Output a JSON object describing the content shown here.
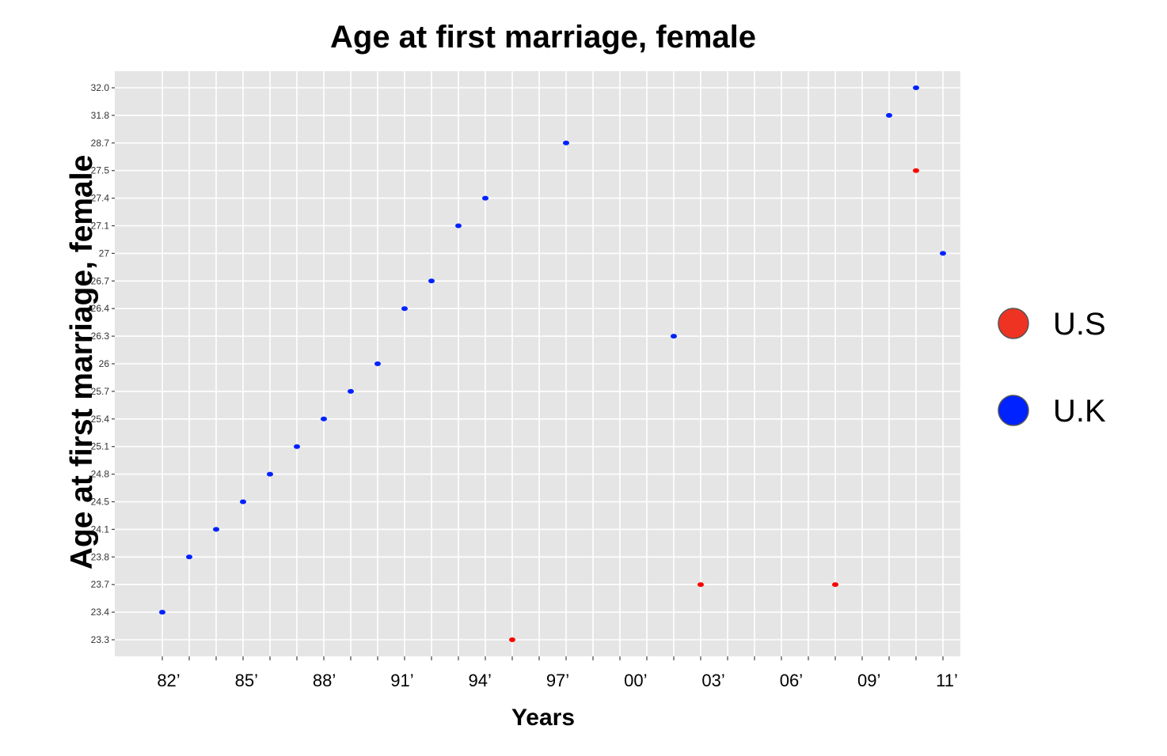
{
  "chart_data": {
    "type": "scatter",
    "title": "Age at first marriage, female",
    "xlabel": "Years",
    "ylabel": "Age at first marriage, female",
    "x_ticks": [
      "82’",
      "85’",
      "88’",
      "91’",
      "94’",
      "97’",
      "00’",
      "03’",
      "06’",
      "09’",
      "11’"
    ],
    "y_ticks": [
      "23.3",
      "23.4",
      "23.7",
      "23.8",
      "24.1",
      "24.5",
      "24.8",
      "25.1",
      "25.4",
      "25.7",
      "26",
      "26.3",
      "26.4",
      "26.7",
      "27",
      "27.1",
      "27.4",
      "27.5",
      "28.7",
      "31.8",
      "32.0"
    ],
    "y_scale": "categorical",
    "grid": true,
    "legend_position": "right",
    "series": [
      {
        "name": "U.S",
        "color": "#ff0000",
        "points": [
          {
            "x": 1995,
            "y": "23.3"
          },
          {
            "x": 2002,
            "y": "23.7"
          },
          {
            "x": 2007,
            "y": "23.7"
          },
          {
            "x": 2010,
            "y": "27.5"
          }
        ]
      },
      {
        "name": "U.K",
        "color": "#0022ff",
        "points": [
          {
            "x": 1982,
            "y": "23.4"
          },
          {
            "x": 1983,
            "y": "23.8"
          },
          {
            "x": 1984,
            "y": "24.1"
          },
          {
            "x": 1985,
            "y": "24.5"
          },
          {
            "x": 1986,
            "y": "24.8"
          },
          {
            "x": 1987,
            "y": "25.1"
          },
          {
            "x": 1988,
            "y": "25.4"
          },
          {
            "x": 1989,
            "y": "25.7"
          },
          {
            "x": 1990,
            "y": "26"
          },
          {
            "x": 1991,
            "y": "26.4"
          },
          {
            "x": 1992,
            "y": "26.7"
          },
          {
            "x": 1993,
            "y": "27.1"
          },
          {
            "x": 1994,
            "y": "27.4"
          },
          {
            "x": 1997,
            "y": "28.7"
          },
          {
            "x": 2001,
            "y": "26.3"
          },
          {
            "x": 2009,
            "y": "31.8"
          },
          {
            "x": 2010,
            "y": "32.0"
          },
          {
            "x": 2011,
            "y": "27"
          }
        ]
      }
    ],
    "legend": [
      {
        "label": "U.S",
        "color": "#ee3322"
      },
      {
        "label": "U.K",
        "color": "#0022ff"
      }
    ]
  }
}
